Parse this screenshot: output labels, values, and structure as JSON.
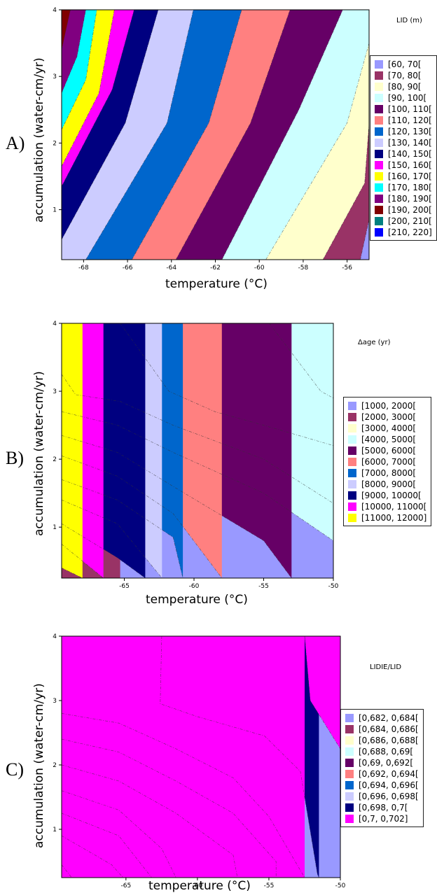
{
  "chart_data": [
    {
      "type": "contour",
      "panel_letter": "A)",
      "title": "LID (m)",
      "xlabel": "temperature (°C)",
      "ylabel": "accumulation (water-cm/yr)",
      "xlim": [
        -69,
        -55
      ],
      "ylim": [
        0.25,
        4
      ],
      "xticks": [
        -68,
        -66,
        -64,
        -62,
        -60,
        -58,
        -56
      ],
      "yticks": [
        1,
        2,
        3,
        4
      ],
      "legend_position": "right",
      "levels": [
        {
          "label": "[60, 70[",
          "color": "#9999ff"
        },
        {
          "label": "[70, 80[",
          "color": "#993366"
        },
        {
          "label": "[80, 90[",
          "color": "#ffffcc"
        },
        {
          "label": "[90, 100[",
          "color": "#ccffff"
        },
        {
          "label": "[100, 110[",
          "color": "#660066"
        },
        {
          "label": "[110, 120[",
          "color": "#ff8080"
        },
        {
          "label": "[120, 130[",
          "color": "#0066cc"
        },
        {
          "label": "[130, 140[",
          "color": "#ccccff"
        },
        {
          "label": "[140, 150[",
          "color": "#000080"
        },
        {
          "label": "[150, 160[",
          "color": "#ff00ff"
        },
        {
          "label": "[160, 170[",
          "color": "#ffff00"
        },
        {
          "label": "[170, 180[",
          "color": "#00ffff"
        },
        {
          "label": "[180, 190[",
          "color": "#800080"
        },
        {
          "label": "[190, 200[",
          "color": "#800000"
        },
        {
          "label": "[200, 210[",
          "color": "#008080"
        },
        {
          "label": "[210, 220]",
          "color": "#0000ff"
        }
      ],
      "boundaries": [
        {
          "upper": "[70, 80[",
          "pts": [
            [
              -55.4,
              0.25
            ],
            [
              -55,
              0.85
            ]
          ]
        },
        {
          "upper": "[80, 90[",
          "pts": [
            [
              -57.1,
              0.25
            ],
            [
              -55.2,
              1.4
            ],
            [
              -55,
              2.3
            ]
          ]
        },
        {
          "upper": "[90, 100[",
          "pts": [
            [
              -59.7,
              0.25
            ],
            [
              -56,
              2.3
            ],
            [
              -55,
              3.5
            ]
          ]
        },
        {
          "upper": "[100, 110[",
          "pts": [
            [
              -61.7,
              0.25
            ],
            [
              -58.2,
              2.5
            ],
            [
              -56.2,
              4
            ]
          ]
        },
        {
          "upper": "[110, 120[",
          "pts": [
            [
              -63.8,
              0.25
            ],
            [
              -60.4,
              2.3
            ],
            [
              -58.6,
              4
            ]
          ]
        },
        {
          "upper": "[120, 130[",
          "pts": [
            [
              -65.8,
              0.25
            ],
            [
              -62.3,
              2.3
            ],
            [
              -60.8,
              4
            ]
          ]
        },
        {
          "upper": "[130, 140[",
          "pts": [
            [
              -67.9,
              0.25
            ],
            [
              -64.2,
              2.3
            ],
            [
              -63,
              4
            ]
          ]
        },
        {
          "upper": "[140, 150[",
          "pts": [
            [
              -69,
              0.55
            ],
            [
              -66.1,
              2.3
            ],
            [
              -64.6,
              4
            ]
          ]
        },
        {
          "upper": "[150, 160[",
          "pts": [
            [
              -69,
              1.35
            ],
            [
              -66.7,
              2.8
            ],
            [
              -65.7,
              4
            ]
          ]
        },
        {
          "upper": "[160, 170[",
          "pts": [
            [
              -69,
              1.65
            ],
            [
              -67.3,
              2.75
            ],
            [
              -66.6,
              4
            ]
          ]
        },
        {
          "upper": "[170, 180[",
          "pts": [
            [
              -69,
              2.2
            ],
            [
              -67.9,
              2.95
            ],
            [
              -67.4,
              4
            ]
          ]
        },
        {
          "upper": "[180, 190[",
          "pts": [
            [
              -69,
              2.75
            ],
            [
              -68.3,
              3.3
            ],
            [
              -67.9,
              4
            ]
          ]
        },
        {
          "upper": "[190, 200[",
          "pts": [
            [
              -69,
              3.4
            ],
            [
              -68.6,
              4
            ]
          ]
        }
      ]
    },
    {
      "type": "contour",
      "panel_letter": "B)",
      "title": "Δage (yr)",
      "xlabel": "temperature (°C)",
      "ylabel": "accumulation (water-cm/yr)",
      "xlim": [
        -69.5,
        -50
      ],
      "ylim": [
        0.25,
        4
      ],
      "xticks": [
        -65,
        -60,
        -55,
        -50
      ],
      "yticks": [
        1,
        2,
        3,
        4
      ],
      "legend_position": "right",
      "levels": [
        {
          "label": "[1000, 2000[",
          "color": "#9999ff"
        },
        {
          "label": "[2000, 3000[",
          "color": "#993366"
        },
        {
          "label": "[3000, 4000[",
          "color": "#ffffcc"
        },
        {
          "label": "[4000, 5000[",
          "color": "#ccffff"
        },
        {
          "label": "[5000, 6000[",
          "color": "#660066"
        },
        {
          "label": "[6000, 7000[",
          "color": "#ff8080"
        },
        {
          "label": "[7000, 8000[",
          "color": "#0066cc"
        },
        {
          "label": "[8000, 9000[",
          "color": "#ccccff"
        },
        {
          "label": "[9000, 10000[",
          "color": "#000080"
        },
        {
          "label": "[10000, 11000[",
          "color": "#ff00ff"
        },
        {
          "label": "[11000, 12000]",
          "color": "#ffff00"
        }
      ],
      "boundaries": [
        {
          "upper": "[1000, 2000[",
          "pts": [
            [
              -54.6,
              4
            ],
            [
              -50.9,
              3.0
            ],
            [
              -50,
              2.9
            ]
          ]
        },
        {
          "upper": "[2000, 3000[",
          "pts": [
            [
              -65.3,
              4
            ],
            [
              -61.8,
              3.0
            ],
            [
              -58.5,
              2.7
            ],
            [
              -55,
              2.5
            ],
            [
              -50,
              2.2
            ]
          ]
        },
        {
          "upper": "[3000, 4000[",
          "pts": [
            [
              -69.5,
              3.25
            ],
            [
              -68.5,
              2.95
            ],
            [
              -65.3,
              2.85
            ],
            [
              -61.5,
              2.5
            ],
            [
              -55,
              2.0
            ],
            [
              -50,
              1.35
            ]
          ]
        },
        {
          "upper": "[4000, 5000[",
          "pts": [
            [
              -69.5,
              2.7
            ],
            [
              -65.5,
              2.5
            ],
            [
              -61.5,
              2.1
            ],
            [
              -55,
              1.5
            ],
            [
              -50,
              0.8
            ]
          ]
        },
        {
          "upper": "[5000, 6000[",
          "pts": [
            [
              -69.5,
              2.35
            ],
            [
              -65.5,
              2.1
            ],
            [
              -61.5,
              1.6
            ],
            [
              -55,
              0.8
            ],
            [
              -53,
              0.25
            ]
          ]
        },
        {
          "upper": "[6000, 7000[",
          "pts": [
            [
              -69.5,
              2.05
            ],
            [
              -65.5,
              1.75
            ],
            [
              -61.5,
              1.2
            ],
            [
              -58,
              0.25
            ]
          ]
        },
        {
          "upper": "[7000, 8000[",
          "pts": [
            [
              -69.5,
              1.7
            ],
            [
              -65.5,
              1.4
            ],
            [
              -61.5,
              0.85
            ],
            [
              -60.8,
              0.25
            ]
          ]
        },
        {
          "upper": "[8000, 9000[",
          "pts": [
            [
              -69.5,
              1.4
            ],
            [
              -65.5,
              1.05
            ],
            [
              -62.3,
              0.25
            ]
          ]
        },
        {
          "upper": "[9000, 10000[",
          "pts": [
            [
              -69.5,
              1.05
            ],
            [
              -65.5,
              0.55
            ],
            [
              -63.5,
              0.25
            ]
          ]
        },
        {
          "upper": "[10000, 11000[",
          "pts": [
            [
              -69.5,
              0.75
            ],
            [
              -66.5,
              0.25
            ]
          ]
        },
        {
          "upper": "[11000, 12000]",
          "pts": [
            [
              -69.5,
              0.4
            ],
            [
              -68,
              0.25
            ]
          ]
        }
      ]
    },
    {
      "type": "contour",
      "panel_letter": "C)",
      "title": "LIDIE/LID",
      "xlabel": "temperature (°C)",
      "ylabel": "accumulation (water-cm/yr)",
      "xlim": [
        -69.5,
        -50
      ],
      "ylim": [
        0.25,
        4
      ],
      "xticks": [
        -65,
        -60,
        -55,
        -50
      ],
      "yticks": [
        1,
        2,
        3,
        4
      ],
      "legend_position": "right",
      "levels": [
        {
          "label": "[0,682, 0,684[",
          "color": "#9999ff"
        },
        {
          "label": "[0,684, 0,686[",
          "color": "#993366"
        },
        {
          "label": "[0,686, 0,688[",
          "color": "#ffffcc"
        },
        {
          "label": "[0,688, 0,69[",
          "color": "#ccffff"
        },
        {
          "label": "[0,69, 0,692[",
          "color": "#660066"
        },
        {
          "label": "[0,692, 0,694[",
          "color": "#ff8080"
        },
        {
          "label": "[0,694, 0,696[",
          "color": "#0066cc"
        },
        {
          "label": "[0,696, 0,698[",
          "color": "#ccccff"
        },
        {
          "label": "[0,698, 0,7[",
          "color": "#000080"
        },
        {
          "label": "[0,7, 0,702]",
          "color": "#ff00ff"
        }
      ],
      "boundaries": [
        {
          "upper": "[0,684, 0,686[",
          "pts": [
            [
              -69.5,
              0.45
            ],
            [
              -68.8,
              0.25
            ]
          ]
        },
        {
          "upper": "[0,686, 0,688[",
          "pts": [
            [
              -69.5,
              0.9
            ],
            [
              -66,
              0.45
            ],
            [
              -65.2,
              0.25
            ]
          ]
        },
        {
          "upper": "[0,688, 0,69[",
          "pts": [
            [
              -69.5,
              1.25
            ],
            [
              -65.5,
              0.9
            ],
            [
              -63.2,
              0.25
            ]
          ]
        },
        {
          "upper": "[0,69, 0,692[",
          "pts": [
            [
              -69.5,
              1.6
            ],
            [
              -65.5,
              1.3
            ],
            [
              -62.5,
              0.7
            ],
            [
              -61.5,
              0.25
            ]
          ]
        },
        {
          "upper": "[0,692, 0,694[",
          "pts": [
            [
              -69.5,
              2.0
            ],
            [
              -65.5,
              1.75
            ],
            [
              -61.5,
              1.25
            ],
            [
              -57.5,
              0.6
            ],
            [
              -57.2,
              0.25
            ]
          ]
        },
        {
          "upper": "[0,694, 0,696[",
          "pts": [
            [
              -69.5,
              2.4
            ],
            [
              -65.5,
              2.2
            ],
            [
              -61.5,
              1.75
            ],
            [
              -57.5,
              1.25
            ],
            [
              -54.5,
              0.5
            ],
            [
              -54.5,
              0.25
            ]
          ]
        },
        {
          "upper": "[0,696, 0,698[",
          "pts": [
            [
              -69.5,
              2.8
            ],
            [
              -65.5,
              2.65
            ],
            [
              -61.5,
              2.25
            ],
            [
              -57.5,
              1.8
            ],
            [
              -55,
              1.2
            ],
            [
              -52.5,
              0.25
            ]
          ]
        },
        {
          "upper": "[0,698, 0,7[",
          "pts": [
            [
              -62.5,
              4
            ],
            [
              -62.6,
              2.95
            ],
            [
              -60,
              2.75
            ],
            [
              -55.3,
              2.45
            ],
            [
              -52.8,
              1.9
            ],
            [
              -51.6,
              0.3
            ],
            [
              -51.5,
              0.25
            ]
          ]
        },
        {
          "upper": "[0,7, 0,702]",
          "pts": [
            [
              -52.5,
              4
            ],
            [
              -52.1,
              3.0
            ],
            [
              -50,
              2.25
            ]
          ]
        }
      ]
    }
  ]
}
